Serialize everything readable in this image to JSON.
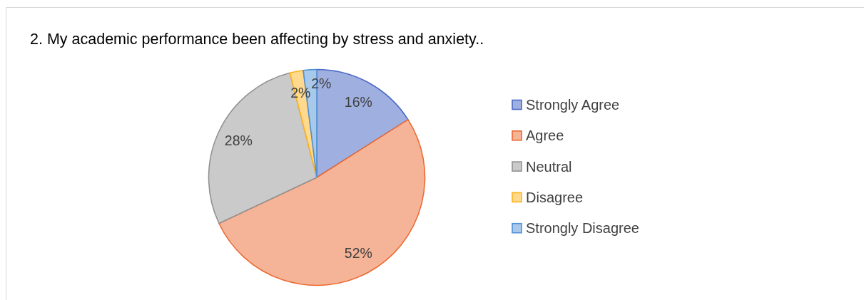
{
  "chart_data": {
    "type": "pie",
    "title": "2. My academic performance been affecting by stress and anxiety..",
    "categories": [
      "Strongly Agree",
      "Agree",
      "Neutral",
      "Disagree",
      "Strongly Disagree"
    ],
    "values": [
      16,
      52,
      28,
      2,
      2
    ],
    "value_labels": [
      "16%",
      "52%",
      "28%",
      "2%",
      "2%"
    ],
    "colors": [
      "#9fb0e0",
      "#f5b498",
      "#cacaca",
      "#ffd98e",
      "#a9c9ea"
    ],
    "legend": "right"
  }
}
